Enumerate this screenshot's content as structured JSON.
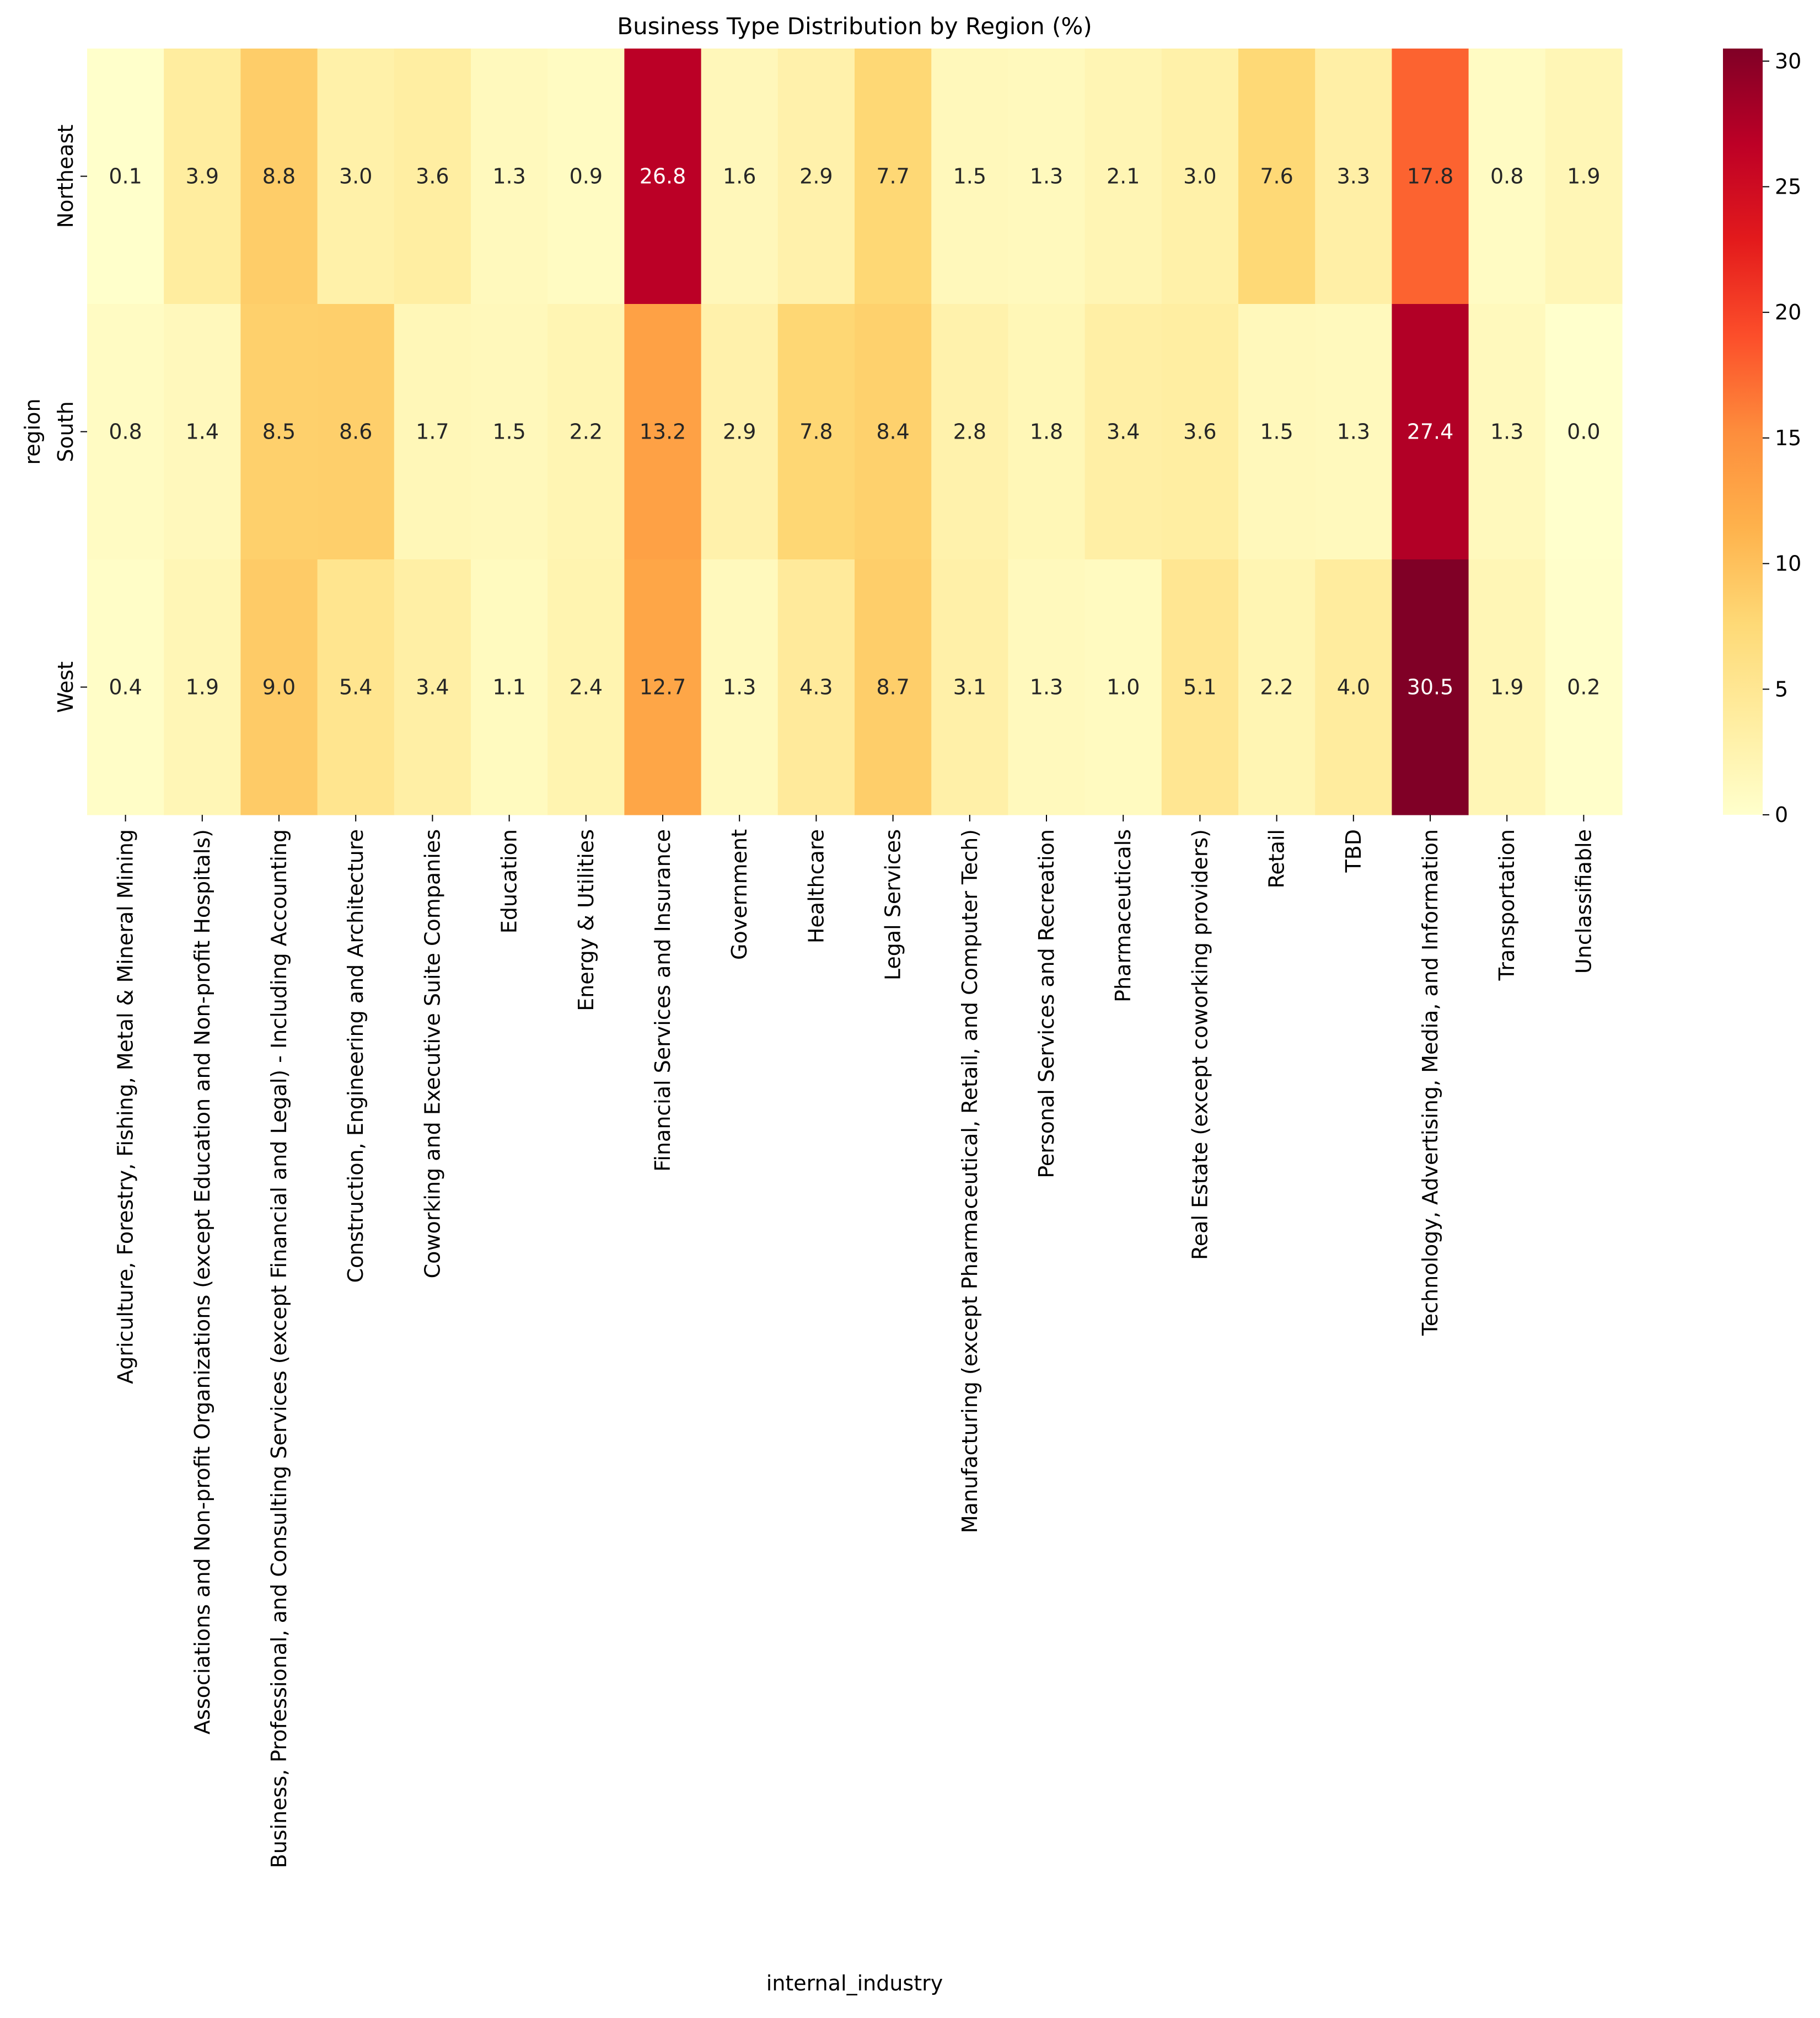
{
  "chart_data": {
    "type": "heatmap",
    "title": "Business Type Distribution by Region (%)",
    "xlabel": "internal_industry",
    "ylabel": "region",
    "rows": [
      "Northeast",
      "South",
      "West"
    ],
    "columns": [
      "Agriculture, Forestry, Fishing, Metal & Mineral Mining",
      "Associations and Non-profit Organizations (except Education and Non-profit Hospitals)",
      "Business, Professional, and Consulting Services (except Financial and Legal) - Including Accounting",
      "Construction, Engineering and Architecture",
      "Coworking and Executive Suite Companies",
      "Education",
      "Energy & Utilities",
      "Financial Services and Insurance",
      "Government",
      "Healthcare",
      "Legal Services",
      "Manufacturing (except Pharmaceutical, Retail, and Computer Tech)",
      "Personal Services and Recreation",
      "Pharmaceuticals",
      "Real Estate (except coworking providers)",
      "Retail",
      "TBD",
      "Technology, Advertising, Media, and Information",
      "Transportation",
      "Unclassifiable"
    ],
    "values": [
      [
        0.1,
        3.9,
        8.8,
        3.0,
        3.6,
        1.3,
        0.9,
        26.8,
        1.6,
        2.9,
        7.7,
        1.5,
        1.3,
        2.1,
        3.0,
        7.6,
        3.3,
        17.8,
        0.8,
        1.9
      ],
      [
        0.8,
        1.4,
        8.5,
        8.6,
        1.7,
        1.5,
        2.2,
        13.2,
        2.9,
        7.8,
        8.4,
        2.8,
        1.8,
        3.4,
        3.6,
        1.5,
        1.3,
        27.4,
        1.3,
        0.0
      ],
      [
        0.4,
        1.9,
        9.0,
        5.4,
        3.4,
        1.1,
        2.4,
        12.7,
        1.3,
        4.3,
        8.7,
        3.1,
        1.3,
        1.0,
        5.1,
        2.2,
        4.0,
        30.5,
        1.9,
        0.2
      ]
    ],
    "colormap": "YlOrRd",
    "colorbar": {
      "min": 0,
      "max": 30.5,
      "ticks": [
        0,
        5,
        10,
        15,
        20,
        25,
        30
      ]
    },
    "annotations": "values shown in cells, one decimal"
  }
}
